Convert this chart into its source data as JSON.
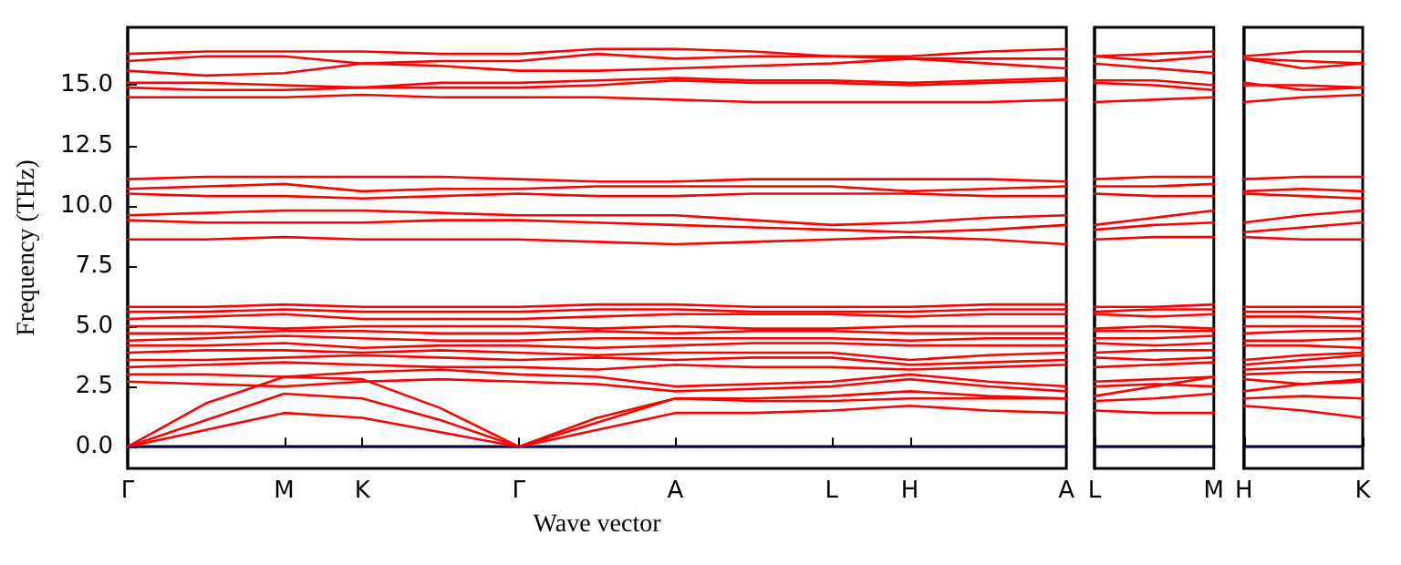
{
  "chart_data": [
    {
      "type": "line",
      "xlabel": "Wave vector",
      "ylabel": "Frequency (THz)",
      "categories": [
        "Γ",
        null,
        "M",
        "K",
        null,
        "Γ",
        null,
        "A",
        null,
        "L",
        "H",
        null,
        "A"
      ],
      "ylim": [
        -0.9,
        17.4
      ],
      "yticks": [
        {
          "value": 0,
          "label": "0.0"
        },
        {
          "value": 2.5,
          "label": "2.5"
        },
        {
          "value": 5,
          "label": "5.0"
        },
        {
          "value": 7.5,
          "label": "7.5"
        },
        {
          "value": 10,
          "label": "10.0"
        },
        {
          "value": 12.5,
          "label": "12.5"
        },
        {
          "value": 15,
          "label": "15.0"
        }
      ],
      "ref_lines": [
        {
          "axis": "y",
          "value": 0,
          "color": "#0000ff",
          "line_style": "dotted"
        }
      ],
      "series": [
        {
          "color": "#ff0000",
          "values": [
            0,
            0.7,
            1.4,
            1.2,
            0.6,
            0,
            0.7,
            1.4,
            1.4,
            1.5,
            1.7,
            1.5,
            1.4
          ]
        },
        {
          "color": "#ff0000",
          "values": [
            0,
            1.1,
            2.2,
            2.0,
            1.1,
            0,
            1.0,
            2.0,
            1.9,
            1.9,
            2.0,
            2.0,
            2.0
          ]
        },
        {
          "color": "#ff0000",
          "values": [
            0,
            1.8,
            2.9,
            2.8,
            1.6,
            0,
            1.2,
            2.0,
            2.0,
            2.1,
            2.3,
            2.1,
            2.0
          ]
        },
        {
          "color": "#ff0000",
          "values": [
            2.7,
            2.6,
            2.5,
            2.7,
            2.8,
            2.7,
            2.6,
            2.3,
            2.4,
            2.5,
            2.8,
            2.5,
            2.3
          ]
        },
        {
          "color": "#ff0000",
          "values": [
            3.0,
            3.0,
            2.9,
            3.1,
            3.2,
            3.0,
            2.9,
            2.5,
            2.6,
            2.7,
            3.0,
            2.7,
            2.5
          ]
        },
        {
          "color": "#ff0000",
          "values": [
            3.3,
            3.4,
            3.5,
            3.4,
            3.3,
            3.3,
            3.2,
            3.4,
            3.3,
            3.3,
            3.2,
            3.3,
            3.4
          ]
        },
        {
          "color": "#ff0000",
          "values": [
            3.6,
            3.6,
            3.7,
            3.8,
            3.7,
            3.6,
            3.7,
            3.6,
            3.7,
            3.7,
            3.4,
            3.5,
            3.6
          ]
        },
        {
          "color": "#ff0000",
          "values": [
            3.9,
            4.0,
            4.0,
            3.9,
            4.0,
            3.9,
            3.8,
            3.9,
            3.9,
            3.9,
            3.6,
            3.8,
            3.9
          ]
        },
        {
          "color": "#ff0000",
          "values": [
            4.2,
            4.2,
            4.3,
            4.1,
            4.2,
            4.2,
            4.1,
            4.2,
            4.3,
            4.3,
            4.2,
            4.2,
            4.2
          ]
        },
        {
          "color": "#ff0000",
          "values": [
            4.4,
            4.5,
            4.6,
            4.5,
            4.4,
            4.4,
            4.5,
            4.5,
            4.5,
            4.5,
            4.4,
            4.5,
            4.5
          ]
        },
        {
          "color": "#ff0000",
          "values": [
            4.7,
            4.7,
            4.8,
            4.8,
            4.7,
            4.7,
            4.8,
            4.7,
            4.8,
            4.8,
            4.7,
            4.7,
            4.7
          ]
        },
        {
          "color": "#ff0000",
          "values": [
            5.0,
            5.0,
            4.9,
            5.0,
            5.0,
            5.0,
            4.9,
            5.0,
            4.9,
            4.9,
            5.0,
            5.0,
            5.0
          ]
        },
        {
          "color": "#ff0000",
          "values": [
            5.3,
            5.4,
            5.5,
            5.3,
            5.3,
            5.3,
            5.4,
            5.5,
            5.5,
            5.5,
            5.4,
            5.5,
            5.5
          ]
        },
        {
          "color": "#ff0000",
          "values": [
            5.6,
            5.6,
            5.7,
            5.6,
            5.6,
            5.6,
            5.7,
            5.7,
            5.6,
            5.6,
            5.6,
            5.7,
            5.7
          ]
        },
        {
          "color": "#ff0000",
          "values": [
            5.8,
            5.8,
            5.9,
            5.8,
            5.8,
            5.8,
            5.9,
            5.9,
            5.8,
            5.8,
            5.8,
            5.9,
            5.9
          ]
        },
        {
          "color": "#ff0000",
          "values": [
            8.6,
            8.6,
            8.7,
            8.6,
            8.6,
            8.6,
            8.5,
            8.4,
            8.5,
            8.6,
            8.7,
            8.6,
            8.4
          ]
        },
        {
          "color": "#ff0000",
          "values": [
            9.4,
            9.3,
            9.3,
            9.3,
            9.4,
            9.4,
            9.3,
            9.2,
            9.1,
            9.0,
            8.9,
            9.0,
            9.2
          ]
        },
        {
          "color": "#ff0000",
          "values": [
            9.6,
            9.7,
            9.8,
            9.8,
            9.7,
            9.6,
            9.6,
            9.6,
            9.4,
            9.2,
            9.3,
            9.5,
            9.6
          ]
        },
        {
          "color": "#ff0000",
          "values": [
            10.5,
            10.4,
            10.4,
            10.3,
            10.4,
            10.5,
            10.4,
            10.4,
            10.5,
            10.5,
            10.5,
            10.4,
            10.4
          ]
        },
        {
          "color": "#ff0000",
          "values": [
            10.7,
            10.8,
            10.9,
            10.6,
            10.7,
            10.7,
            10.8,
            10.8,
            10.8,
            10.8,
            10.6,
            10.7,
            10.8
          ]
        },
        {
          "color": "#ff0000",
          "values": [
            11.1,
            11.2,
            11.2,
            11.2,
            11.2,
            11.1,
            11.0,
            11.0,
            11.1,
            11.1,
            11.1,
            11.1,
            11.0
          ]
        },
        {
          "color": "#ff0000",
          "values": [
            14.5,
            14.5,
            14.5,
            14.6,
            14.5,
            14.5,
            14.5,
            14.4,
            14.3,
            14.3,
            14.3,
            14.3,
            14.4
          ]
        },
        {
          "color": "#ff0000",
          "values": [
            14.9,
            14.8,
            14.8,
            14.9,
            14.9,
            14.9,
            15.0,
            15.2,
            15.1,
            15.1,
            15.0,
            15.1,
            15.2
          ]
        },
        {
          "color": "#ff0000",
          "values": [
            15.1,
            15.1,
            15.0,
            14.9,
            15.1,
            15.1,
            15.2,
            15.3,
            15.2,
            15.2,
            15.1,
            15.2,
            15.3
          ]
        },
        {
          "color": "#ff0000",
          "values": [
            15.6,
            15.4,
            15.5,
            15.9,
            15.8,
            15.6,
            15.6,
            15.7,
            15.8,
            15.9,
            16.1,
            15.9,
            15.7
          ]
        },
        {
          "color": "#ff0000",
          "values": [
            16.0,
            16.2,
            16.2,
            15.9,
            16.0,
            16.0,
            16.3,
            16.1,
            16.2,
            16.2,
            16.1,
            16.1,
            16.1
          ]
        },
        {
          "color": "#ff0000",
          "values": [
            16.3,
            16.4,
            16.4,
            16.4,
            16.3,
            16.3,
            16.5,
            16.5,
            16.4,
            16.2,
            16.2,
            16.4,
            16.5
          ]
        }
      ]
    },
    {
      "type": "line",
      "categories": [
        "L",
        null,
        "M"
      ],
      "ylim": [
        -0.9,
        17.4
      ],
      "tick_labels": "x",
      "ref_lines": [
        {
          "axis": "y",
          "value": 0,
          "color": "#0000ff",
          "line_style": "dotted"
        }
      ],
      "series": [
        {
          "color": "#ff0000",
          "values": [
            1.5,
            1.4,
            1.4
          ]
        },
        {
          "color": "#ff0000",
          "values": [
            1.9,
            2.0,
            2.2
          ]
        },
        {
          "color": "#ff0000",
          "values": [
            2.1,
            2.5,
            2.9
          ]
        },
        {
          "color": "#ff0000",
          "values": [
            2.5,
            2.6,
            2.5
          ]
        },
        {
          "color": "#ff0000",
          "values": [
            2.7,
            2.8,
            2.9
          ]
        },
        {
          "color": "#ff0000",
          "values": [
            3.3,
            3.4,
            3.5
          ]
        },
        {
          "color": "#ff0000",
          "values": [
            3.7,
            3.6,
            3.7
          ]
        },
        {
          "color": "#ff0000",
          "values": [
            3.9,
            4.0,
            4.0
          ]
        },
        {
          "color": "#ff0000",
          "values": [
            4.3,
            4.2,
            4.3
          ]
        },
        {
          "color": "#ff0000",
          "values": [
            4.5,
            4.5,
            4.6
          ]
        },
        {
          "color": "#ff0000",
          "values": [
            4.8,
            4.8,
            4.8
          ]
        },
        {
          "color": "#ff0000",
          "values": [
            4.9,
            5.0,
            4.9
          ]
        },
        {
          "color": "#ff0000",
          "values": [
            5.5,
            5.4,
            5.5
          ]
        },
        {
          "color": "#ff0000",
          "values": [
            5.6,
            5.7,
            5.7
          ]
        },
        {
          "color": "#ff0000",
          "values": [
            5.8,
            5.8,
            5.9
          ]
        },
        {
          "color": "#ff0000",
          "values": [
            8.6,
            8.7,
            8.7
          ]
        },
        {
          "color": "#ff0000",
          "values": [
            9.0,
            9.2,
            9.3
          ]
        },
        {
          "color": "#ff0000",
          "values": [
            9.2,
            9.5,
            9.8
          ]
        },
        {
          "color": "#ff0000",
          "values": [
            10.5,
            10.4,
            10.4
          ]
        },
        {
          "color": "#ff0000",
          "values": [
            10.8,
            10.8,
            10.9
          ]
        },
        {
          "color": "#ff0000",
          "values": [
            11.1,
            11.2,
            11.2
          ]
        },
        {
          "color": "#ff0000",
          "values": [
            14.3,
            14.4,
            14.5
          ]
        },
        {
          "color": "#ff0000",
          "values": [
            15.1,
            15.0,
            14.8
          ]
        },
        {
          "color": "#ff0000",
          "values": [
            15.2,
            15.2,
            15.0
          ]
        },
        {
          "color": "#ff0000",
          "values": [
            15.9,
            15.7,
            15.5
          ]
        },
        {
          "color": "#ff0000",
          "values": [
            16.2,
            16.0,
            16.2
          ]
        },
        {
          "color": "#ff0000",
          "values": [
            16.2,
            16.3,
            16.4
          ]
        }
      ]
    },
    {
      "type": "line",
      "categories": [
        "H",
        null,
        "K"
      ],
      "ylim": [
        -0.9,
        17.4
      ],
      "tick_labels": "x",
      "ref_lines": [
        {
          "axis": "y",
          "value": 0,
          "color": "#0000ff",
          "line_style": "dotted"
        }
      ],
      "series": [
        {
          "color": "#ff0000",
          "values": [
            1.7,
            1.5,
            1.2
          ]
        },
        {
          "color": "#ff0000",
          "values": [
            2.0,
            2.1,
            2.0
          ]
        },
        {
          "color": "#ff0000",
          "values": [
            2.3,
            2.6,
            2.8
          ]
        },
        {
          "color": "#ff0000",
          "values": [
            2.8,
            2.6,
            2.7
          ]
        },
        {
          "color": "#ff0000",
          "values": [
            3.0,
            3.1,
            3.1
          ]
        },
        {
          "color": "#ff0000",
          "values": [
            3.2,
            3.3,
            3.4
          ]
        },
        {
          "color": "#ff0000",
          "values": [
            3.4,
            3.6,
            3.8
          ]
        },
        {
          "color": "#ff0000",
          "values": [
            3.6,
            3.8,
            3.9
          ]
        },
        {
          "color": "#ff0000",
          "values": [
            4.2,
            4.2,
            4.1
          ]
        },
        {
          "color": "#ff0000",
          "values": [
            4.4,
            4.4,
            4.5
          ]
        },
        {
          "color": "#ff0000",
          "values": [
            4.7,
            4.8,
            4.8
          ]
        },
        {
          "color": "#ff0000",
          "values": [
            5.0,
            5.0,
            5.0
          ]
        },
        {
          "color": "#ff0000",
          "values": [
            5.4,
            5.4,
            5.3
          ]
        },
        {
          "color": "#ff0000",
          "values": [
            5.6,
            5.6,
            5.6
          ]
        },
        {
          "color": "#ff0000",
          "values": [
            5.8,
            5.8,
            5.8
          ]
        },
        {
          "color": "#ff0000",
          "values": [
            8.7,
            8.6,
            8.6
          ]
        },
        {
          "color": "#ff0000",
          "values": [
            8.9,
            9.1,
            9.3
          ]
        },
        {
          "color": "#ff0000",
          "values": [
            9.3,
            9.6,
            9.8
          ]
        },
        {
          "color": "#ff0000",
          "values": [
            10.5,
            10.4,
            10.3
          ]
        },
        {
          "color": "#ff0000",
          "values": [
            10.6,
            10.7,
            10.6
          ]
        },
        {
          "color": "#ff0000",
          "values": [
            11.1,
            11.2,
            11.2
          ]
        },
        {
          "color": "#ff0000",
          "values": [
            14.3,
            14.5,
            14.6
          ]
        },
        {
          "color": "#ff0000",
          "values": [
            15.0,
            15.0,
            14.9
          ]
        },
        {
          "color": "#ff0000",
          "values": [
            15.1,
            14.8,
            14.9
          ]
        },
        {
          "color": "#ff0000",
          "values": [
            16.1,
            15.7,
            15.9
          ]
        },
        {
          "color": "#ff0000",
          "values": [
            16.1,
            16.0,
            15.9
          ]
        },
        {
          "color": "#ff0000",
          "values": [
            16.2,
            16.4,
            16.4
          ]
        }
      ]
    }
  ]
}
